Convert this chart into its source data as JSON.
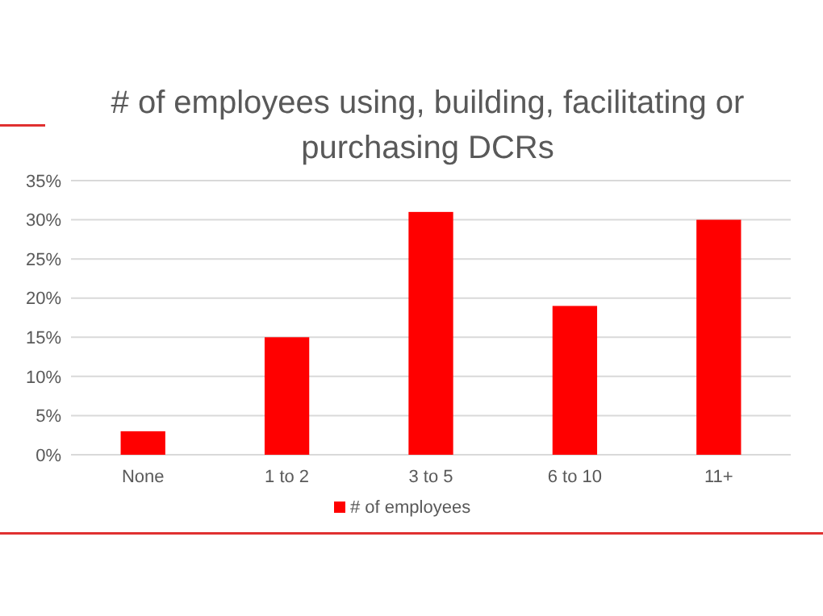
{
  "chart_data": {
    "type": "bar",
    "title": "# of employees using, building, facilitating or purchasing DCRs",
    "categories": [
      "None",
      "1 to 2",
      "3 to 5",
      "6 to 10",
      "11+"
    ],
    "series": [
      {
        "name": "# of employees",
        "color": "#ff0000",
        "values": [
          3,
          15,
          31,
          19,
          30
        ]
      }
    ],
    "ylim": [
      0,
      35
    ],
    "yticks": [
      {
        "value": 0,
        "label": "0%"
      },
      {
        "value": 5,
        "label": "5%"
      },
      {
        "value": 10,
        "label": "10%"
      },
      {
        "value": 15,
        "label": "15%"
      },
      {
        "value": 20,
        "label": "20%"
      },
      {
        "value": 25,
        "label": "25%"
      },
      {
        "value": 30,
        "label": "30%"
      },
      {
        "value": 35,
        "label": "35%"
      }
    ],
    "grid": "y",
    "legend": "bottom"
  }
}
